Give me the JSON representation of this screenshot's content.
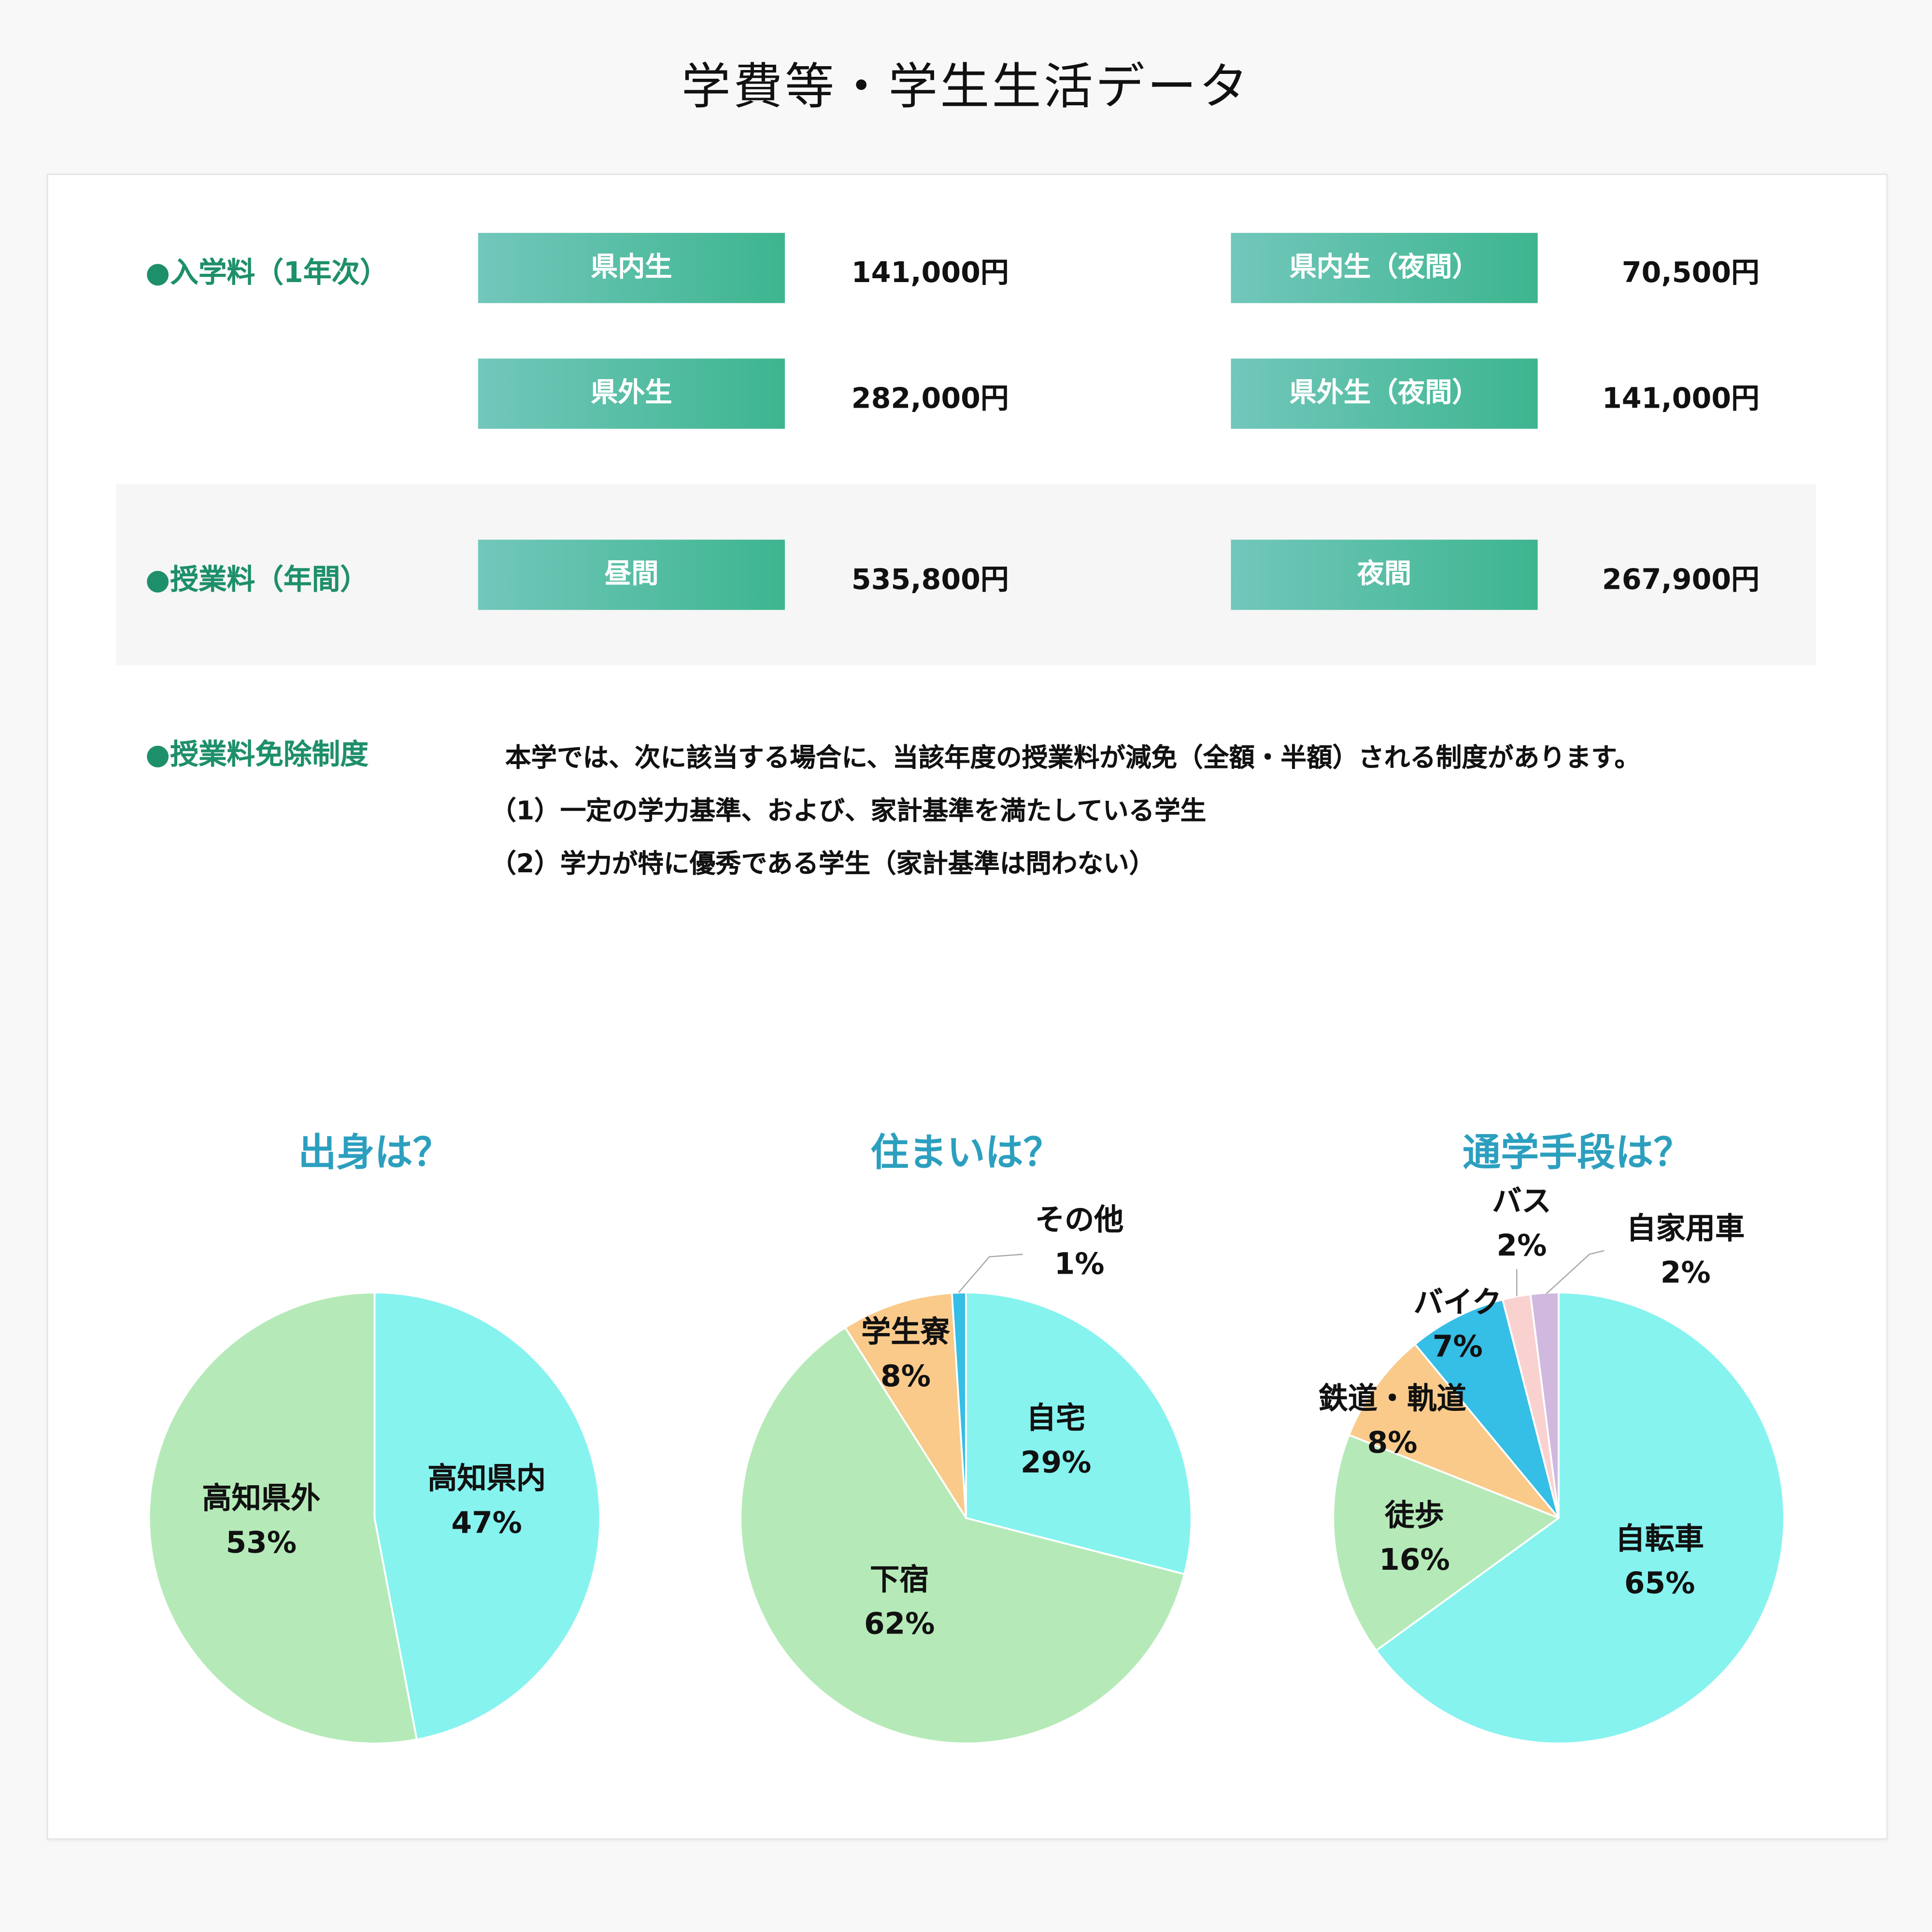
{
  "page_title": "学費等・学生生活データ",
  "entrance_fee": {
    "heading": "●入学料（1年次）",
    "rows": [
      {
        "label": "県内生",
        "amount": "141,000円",
        "label2": "県内生（夜間）",
        "amount2": "70,500円"
      },
      {
        "label": "県外生",
        "amount": "282,000円",
        "label2": "県外生（夜間）",
        "amount2": "141,000円"
      }
    ]
  },
  "tuition": {
    "heading": "●授業料（年間）",
    "label": "昼間",
    "amount": "535,800円",
    "label2": "夜間",
    "amount2": "267,900円"
  },
  "exemption": {
    "heading": "●授業料免除制度",
    "lines": [
      "本学では、次に該当する場合に、当該年度の授業料が減免（全額・半額）される制度があります。",
      "（1）一定の学力基準、および、家計基準を満たしている学生",
      "（2）学力が特に優秀である学生（家計基準は問わない）"
    ]
  },
  "colors": {
    "accent": "#1e8f6b",
    "chart_title": "#2c9fbf"
  },
  "chart_data": [
    {
      "type": "pie",
      "title": "出身は？",
      "slices": [
        {
          "name": "高知県内",
          "value": 47,
          "label": "47%",
          "color": "#86f3ef"
        },
        {
          "name": "高知県外",
          "value": 53,
          "label": "53%",
          "color": "#b5eab8"
        }
      ]
    },
    {
      "type": "pie",
      "title": "住まいは？",
      "slices": [
        {
          "name": "自宅",
          "value": 29,
          "label": "29%",
          "color": "#86f3ef"
        },
        {
          "name": "下宿",
          "value": 62,
          "label": "62%",
          "color": "#b5eab8"
        },
        {
          "name": "学生寮",
          "value": 8,
          "label": "8%",
          "color": "#f9ca8a"
        },
        {
          "name": "その他",
          "value": 1,
          "label": "1%",
          "color": "#35bee6"
        }
      ]
    },
    {
      "type": "pie",
      "title": "通学手段は？",
      "slices": [
        {
          "name": "自転車",
          "value": 65,
          "label": "65%",
          "color": "#86f3ef"
        },
        {
          "name": "徒歩",
          "value": 16,
          "label": "16%",
          "color": "#b5eab8"
        },
        {
          "name": "鉄道・軌道",
          "value": 8,
          "label": "8%",
          "color": "#f9ca8a"
        },
        {
          "name": "バイク",
          "value": 7,
          "label": "7%",
          "color": "#35bee6"
        },
        {
          "name": "バス",
          "value": 2,
          "label": "2%",
          "color": "#f9d2d0"
        },
        {
          "name": "自家用車",
          "value": 2,
          "label": "2%",
          "color": "#d0b8df"
        }
      ]
    }
  ]
}
